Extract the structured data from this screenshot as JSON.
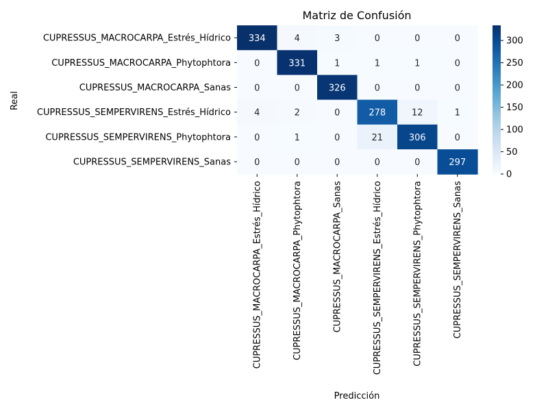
{
  "chart_data": {
    "type": "heatmap",
    "title": "Matriz de Confusión",
    "xlabel": "Predicción",
    "ylabel": "Real",
    "rows": [
      "CUPRESSUS_MACROCARPA_Estrés_Hídrico",
      "CUPRESSUS_MACROCARPA_Phytophtora",
      "CUPRESSUS_MACROCARPA_Sanas",
      "CUPRESSUS_SEMPERVIRENS_Estrés_Hídrico",
      "CUPRESSUS_SEMPERVIRENS_Phytophtora",
      "CUPRESSUS_SEMPERVIRENS_Sanas"
    ],
    "columns": [
      "CUPRESSUS_MACROCARPA_Estrés_Hídrico",
      "CUPRESSUS_MACROCARPA_Phytophtora",
      "CUPRESSUS_MACROCARPA_Sanas",
      "CUPRESSUS_SEMPERVIRENS_Estrés_Hídrico",
      "CUPRESSUS_SEMPERVIRENS_Phytophtora",
      "CUPRESSUS_SEMPERVIRENS_Sanas"
    ],
    "values": [
      [
        334,
        4,
        3,
        0,
        0,
        0
      ],
      [
        0,
        331,
        1,
        1,
        1,
        0
      ],
      [
        0,
        0,
        326,
        0,
        0,
        0
      ],
      [
        4,
        2,
        0,
        278,
        12,
        1
      ],
      [
        0,
        1,
        0,
        21,
        306,
        0
      ],
      [
        0,
        0,
        0,
        0,
        0,
        297
      ]
    ],
    "colorbar": {
      "ticks": [
        0,
        50,
        100,
        150,
        200,
        250,
        300
      ],
      "range": [
        0,
        334
      ],
      "colormap": "Blues"
    },
    "colors": {
      "low": "#f7fbff",
      "high": "#08306b",
      "text_dark_bg": "#ffffff",
      "text_light_bg": "#262626"
    }
  }
}
